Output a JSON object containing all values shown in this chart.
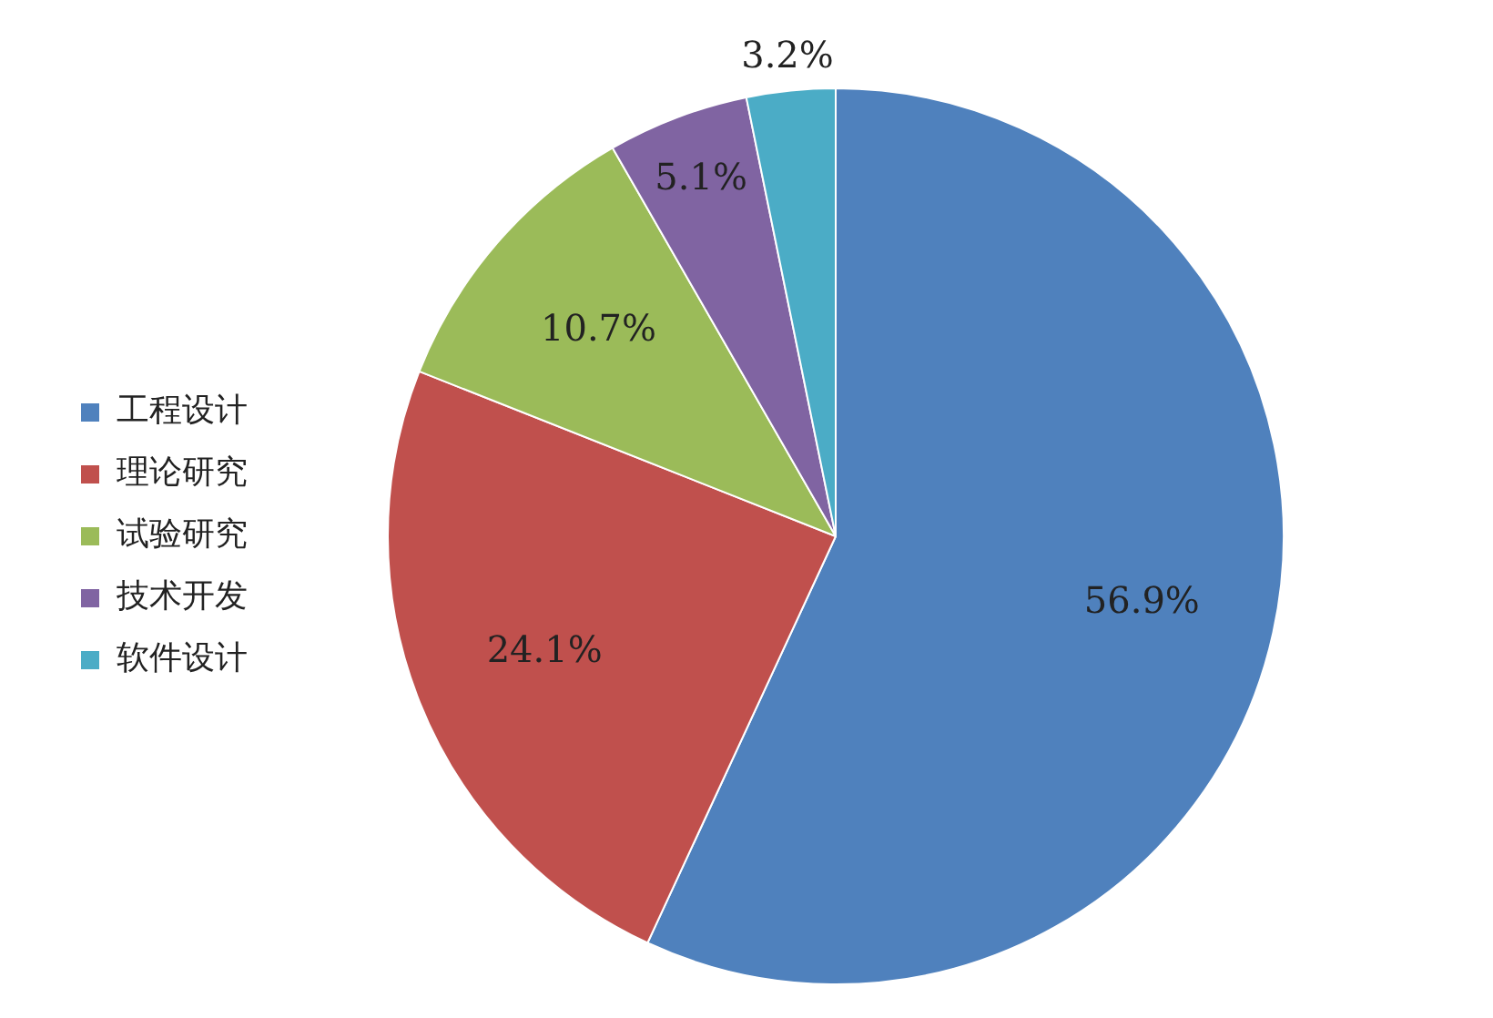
{
  "chart_data": {
    "type": "pie",
    "categories": [
      "工程设计",
      "理论研究",
      "试验研究",
      "技术开发",
      "软件设计"
    ],
    "values": [
      56.9,
      24.1,
      10.7,
      5.1,
      3.2
    ],
    "colors": [
      "#4f81bd",
      "#c0504d",
      "#9bbb59",
      "#8064a2",
      "#4bacc6"
    ],
    "value_labels": [
      "56.9%",
      "24.1%",
      "10.7%",
      "5.1%",
      "3.2%"
    ],
    "legend": "left"
  }
}
